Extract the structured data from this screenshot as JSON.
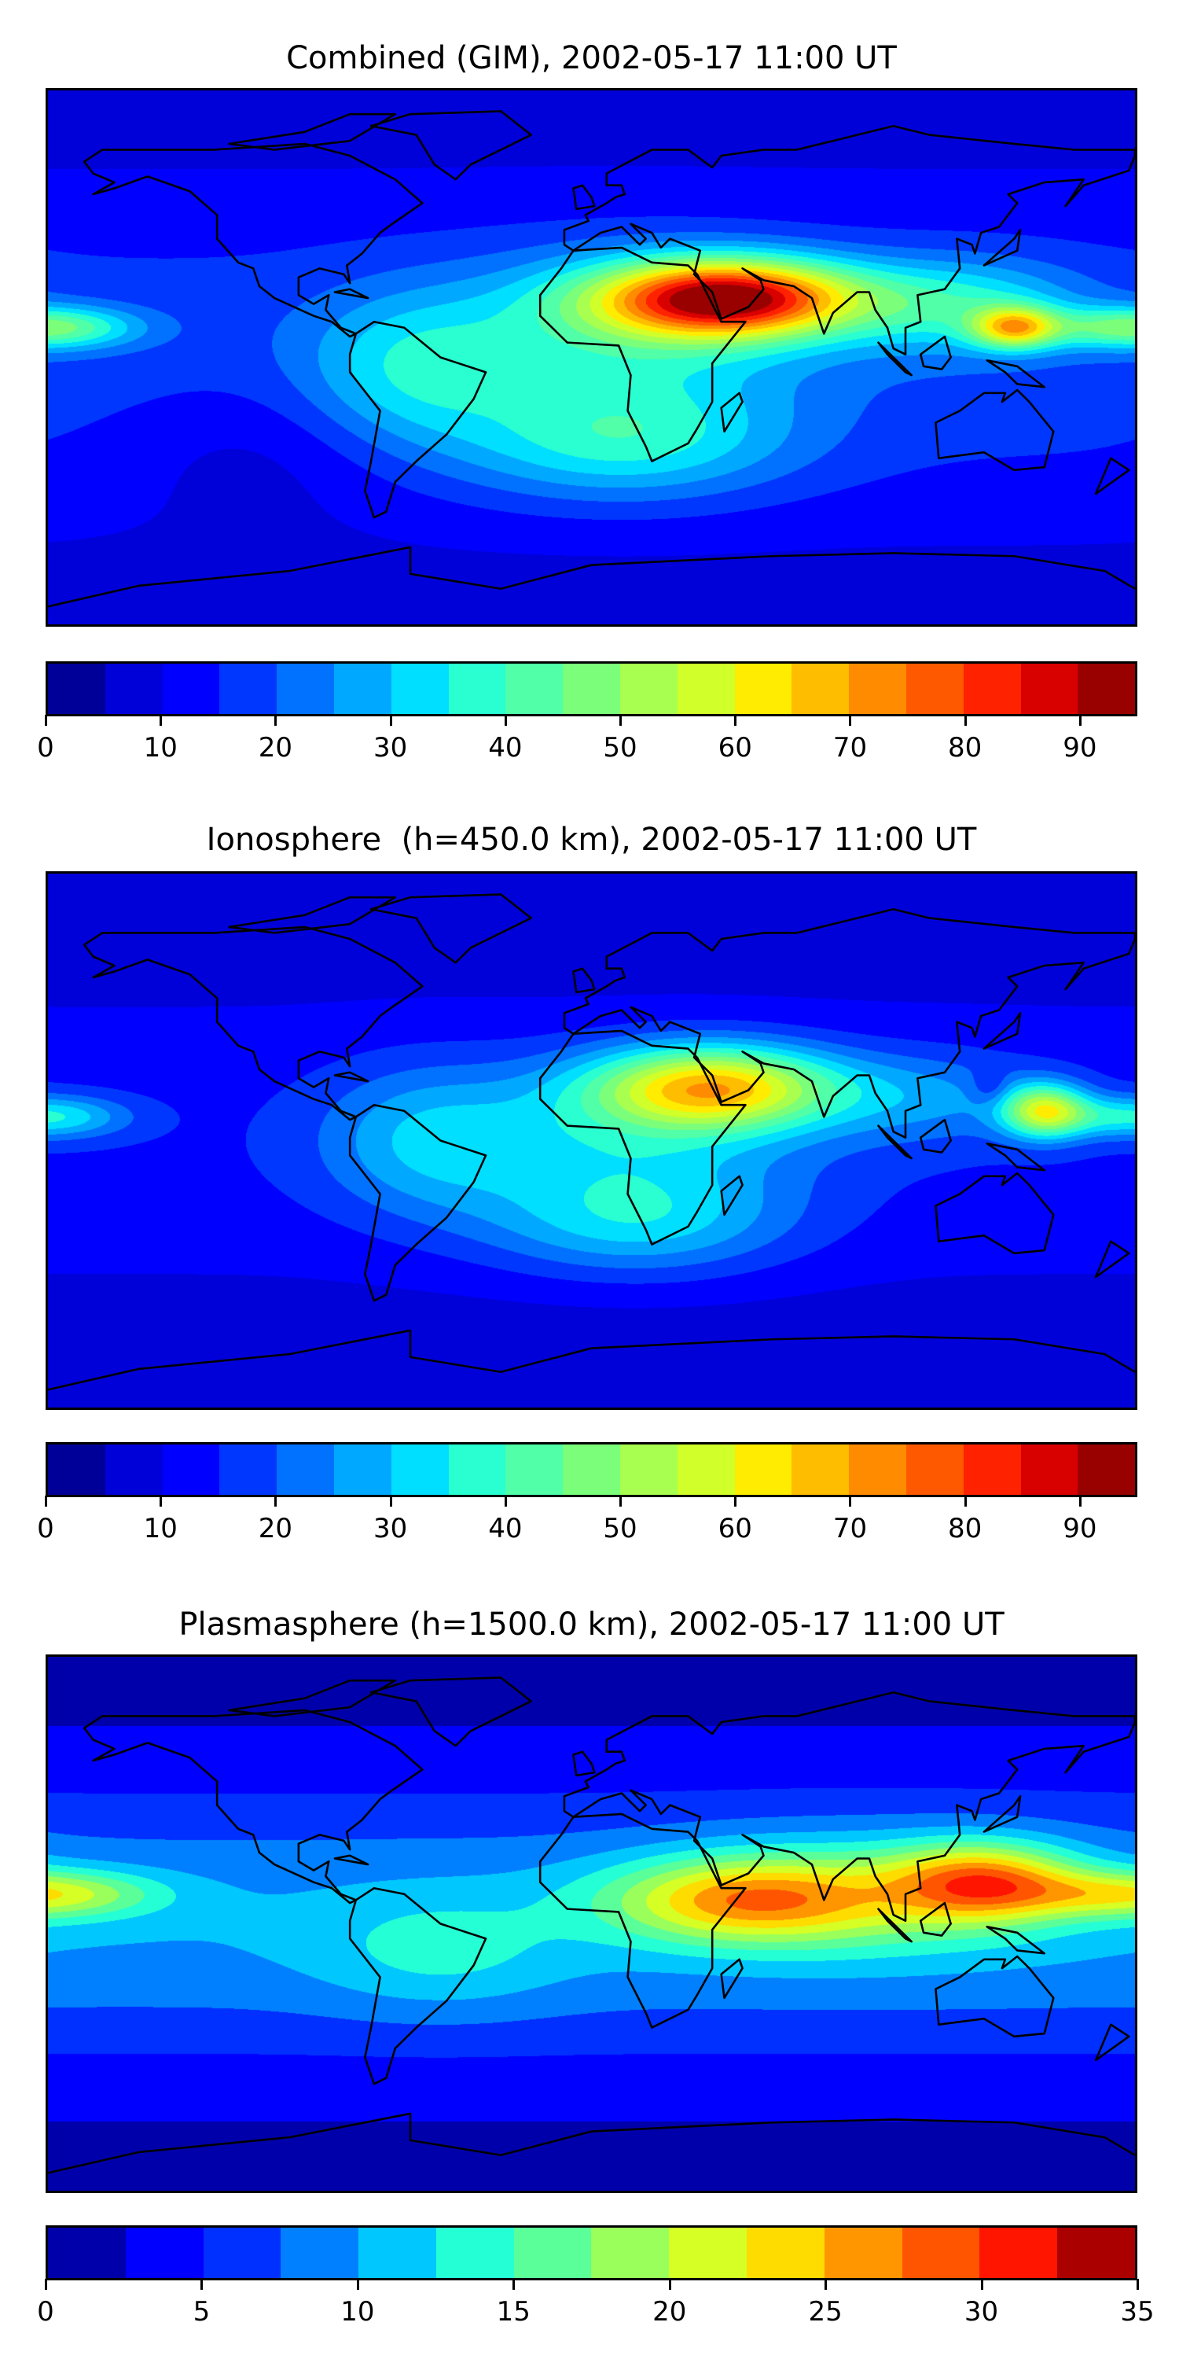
{
  "chart_data": [
    {
      "type": "heatmap",
      "subtype": "filled-contour map (equirectangular, world coastlines)",
      "title": "Combined (GIM), 2002-05-17 11:00 UT",
      "colorbar": {
        "levels": [
          0,
          5,
          10,
          15,
          20,
          25,
          30,
          35,
          40,
          45,
          50,
          55,
          60,
          65,
          70,
          75,
          80,
          85,
          90,
          95
        ],
        "ticks": [
          0,
          10,
          20,
          30,
          40,
          50,
          60,
          70,
          80,
          90
        ],
        "tick_labels": [
          "0",
          "10",
          "20",
          "30",
          "40",
          "50",
          "60",
          "70",
          "80",
          "90"
        ],
        "colors": [
          "#000099",
          "#0000d9",
          "#0000ff",
          "#0037ff",
          "#0072ff",
          "#00a8ff",
          "#00dfff",
          "#29ffd0",
          "#50ffa8",
          "#7bff7b",
          "#a8ff50",
          "#d0ff29",
          "#ffec00",
          "#ffbd00",
          "#ff8b00",
          "#ff5900",
          "#ff2200",
          "#d90000",
          "#990000"
        ],
        "range": [
          0,
          95
        ]
      },
      "features": {
        "max_region": "North Africa / Arabia / India (~85-90)",
        "secondary_max": "Western Pacific near Philippines (~70)",
        "dateline_max": "~45 near 10N at 180",
        "minimum": "high latitudes and south Pacific (~5-10)"
      }
    },
    {
      "type": "heatmap",
      "subtype": "filled-contour map (equirectangular, world coastlines)",
      "title": "Ionosphere  (h=450.0 km), 2002-05-17 11:00 UT",
      "colorbar": {
        "levels": [
          0,
          5,
          10,
          15,
          20,
          25,
          30,
          35,
          40,
          45,
          50,
          55,
          60,
          65,
          70,
          75,
          80,
          85,
          90,
          95
        ],
        "ticks": [
          0,
          10,
          20,
          30,
          40,
          50,
          60,
          70,
          80,
          90
        ],
        "tick_labels": [
          "0",
          "10",
          "20",
          "30",
          "40",
          "50",
          "60",
          "70",
          "80",
          "90"
        ],
        "colors": [
          "#000099",
          "#0000d9",
          "#0000ff",
          "#0037ff",
          "#0072ff",
          "#00a8ff",
          "#00dfff",
          "#29ffd0",
          "#50ffa8",
          "#7bff7b",
          "#a8ff50",
          "#d0ff29",
          "#ffec00",
          "#ffbd00",
          "#ff8b00",
          "#ff5900",
          "#ff2200",
          "#d90000",
          "#990000"
        ],
        "range": [
          0,
          95
        ]
      },
      "features": {
        "max_region": "North Africa / Arabia (~65-70)",
        "secondary_max": "Western Pacific (~60)",
        "minimum": "high latitudes (~5)"
      }
    },
    {
      "type": "heatmap",
      "subtype": "filled-contour map (equirectangular, world coastlines)",
      "title": "Plasmasphere (h=1500.0 km), 2002-05-17 11:00 UT",
      "colorbar": {
        "levels": [
          0,
          2.5,
          5,
          7.5,
          10,
          12.5,
          15,
          17.5,
          20,
          22.5,
          25,
          27.5,
          30,
          32.5,
          35
        ],
        "ticks": [
          0,
          5,
          10,
          15,
          20,
          25,
          30,
          35
        ],
        "tick_labels": [
          "0",
          "5",
          "10",
          "15",
          "20",
          "25",
          "30",
          "35"
        ],
        "colors": [
          "#0000aa",
          "#0000ff",
          "#0030ff",
          "#0080ff",
          "#00c8ff",
          "#25ffd5",
          "#5aff9a",
          "#9aff5a",
          "#d5ff25",
          "#ffdc00",
          "#ff9600",
          "#ff5500",
          "#ff1500",
          "#aa0000"
        ],
        "range": [
          0,
          35
        ]
      },
      "features": {
        "max_region": "Southeast Asia (~27-30) and East Africa/Indian Ocean (~27)",
        "dateline_max": "~20 near 10N",
        "minimum": "polar regions (~0-2.5)"
      }
    }
  ]
}
